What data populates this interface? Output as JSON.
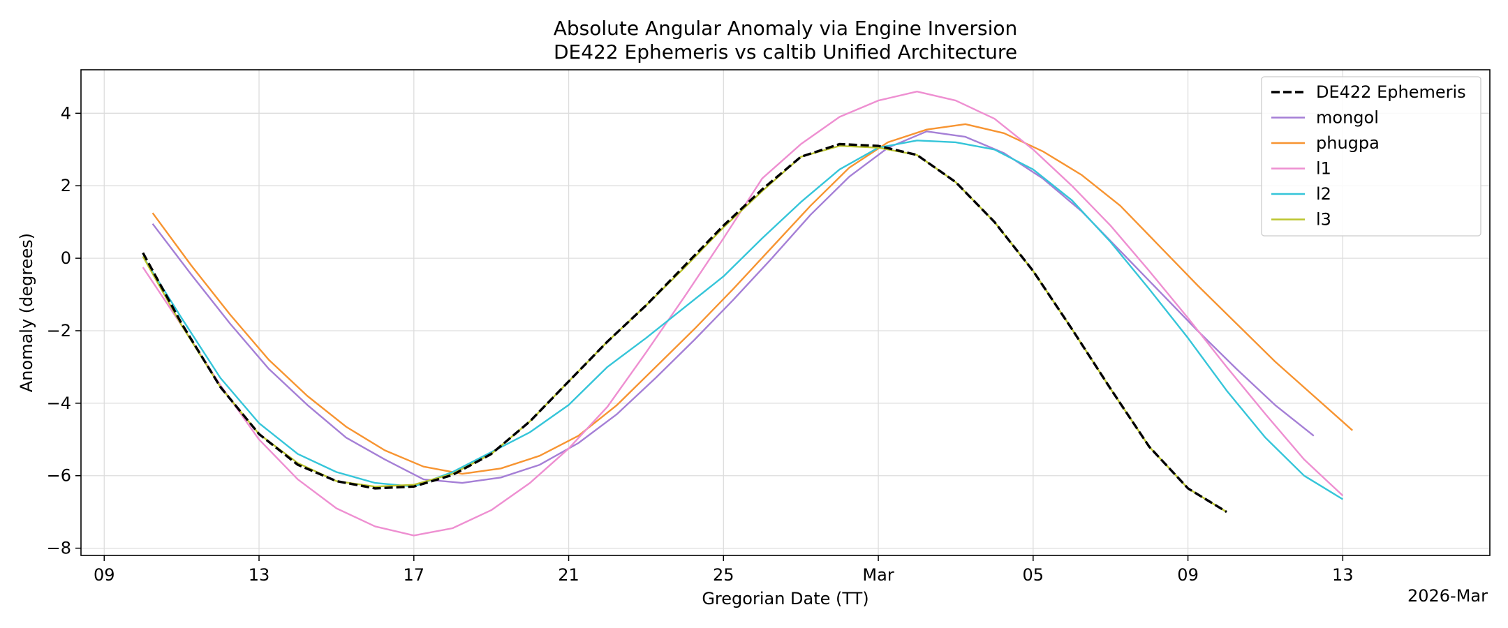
{
  "chart_data": {
    "type": "line",
    "title": "Absolute Angular Anomaly via Engine Inversion",
    "subtitle": "DE422 Ephemeris vs caltib Unified Architecture",
    "xlabel": "Gregorian Date (TT)",
    "ylabel": "Anomaly (degrees)",
    "x_offset_label": "2026-Mar",
    "x_unit": "days since Feb 09",
    "xlim": [
      -0.6,
      35.8
    ],
    "ylim": [
      -8.2,
      5.2
    ],
    "grid": true,
    "legend_position": "top-right",
    "x_ticks": [
      {
        "value": 0,
        "label": "09"
      },
      {
        "value": 4,
        "label": "13"
      },
      {
        "value": 8,
        "label": "17"
      },
      {
        "value": 12,
        "label": "21"
      },
      {
        "value": 16,
        "label": "25"
      },
      {
        "value": 20,
        "label": "Mar"
      },
      {
        "value": 24,
        "label": "05"
      },
      {
        "value": 28,
        "label": "09"
      },
      {
        "value": 32,
        "label": "13"
      }
    ],
    "y_ticks": [
      {
        "value": 4,
        "label": "4"
      },
      {
        "value": 2,
        "label": "2"
      },
      {
        "value": 0,
        "label": "0"
      },
      {
        "value": -2,
        "label": "−2"
      },
      {
        "value": -4,
        "label": "−4"
      },
      {
        "value": -6,
        "label": "−6"
      },
      {
        "value": -8,
        "label": "−8"
      }
    ],
    "series": [
      {
        "name": "DE422 Ephemeris",
        "color": "#000000",
        "dash": true,
        "x": [
          1,
          2,
          3,
          4,
          5,
          6,
          7,
          8,
          9,
          10,
          11,
          12,
          13,
          14,
          15,
          16,
          17,
          18,
          19,
          20,
          21,
          22,
          23,
          24,
          25,
          26,
          27,
          28,
          29,
          30,
          31,
          32,
          33,
          34
        ],
        "y": [
          0.15,
          -1.8,
          -3.55,
          -4.85,
          -5.7,
          -6.15,
          -6.35,
          -6.3,
          -5.98,
          -5.4,
          -4.5,
          -3.4,
          -2.3,
          -1.3,
          -0.2,
          0.9,
          1.9,
          2.8,
          3.15,
          3.1,
          2.85,
          2.1,
          1.0,
          -0.35,
          -1.95,
          -3.6,
          -5.2,
          -6.35,
          -7.0,
          null,
          null,
          null,
          null,
          null
        ]
      },
      {
        "name": "mongol",
        "color": "#a57fd6",
        "dash": false,
        "x": [
          1.25,
          2.25,
          3.25,
          4.25,
          5.25,
          6.25,
          7.25,
          8.25,
          9.25,
          10.25,
          11.25,
          12.25,
          13.25,
          14.25,
          15.25,
          16.25,
          17.25,
          18.25,
          19.25,
          20.25,
          21.25,
          22.25,
          23.25,
          24.25,
          25.25,
          26.25,
          27.25,
          28.25,
          29.25,
          30.25,
          31.25,
          32.25,
          33.25,
          34.25
        ],
        "y": [
          0.95,
          -0.45,
          -1.8,
          -3.05,
          -4.05,
          -4.95,
          -5.55,
          -6.1,
          -6.2,
          -6.05,
          -5.7,
          -5.1,
          -4.3,
          -3.3,
          -2.25,
          -1.15,
          0.0,
          1.2,
          2.25,
          3.05,
          3.5,
          3.35,
          2.9,
          2.2,
          1.3,
          0.2,
          -0.9,
          -2.0,
          -3.05,
          -4.05,
          -4.9,
          null,
          null,
          null
        ]
      },
      {
        "name": "phugpa",
        "color": "#f79431",
        "dash": false,
        "x": [
          1.25,
          2.25,
          3.25,
          4.25,
          5.25,
          6.25,
          7.25,
          8.25,
          9.25,
          10.25,
          11.25,
          12.25,
          13.25,
          14.25,
          15.25,
          16.25,
          17.25,
          18.25,
          19.25,
          20.25,
          21.25,
          22.25,
          23.25,
          24.25,
          25.25,
          26.25,
          27.25,
          28.25,
          29.25,
          30.25,
          31.25,
          32.25,
          33.25,
          34.25
        ],
        "y": [
          1.25,
          -0.2,
          -1.55,
          -2.8,
          -3.8,
          -4.65,
          -5.3,
          -5.75,
          -5.95,
          -5.8,
          -5.45,
          -4.9,
          -4.05,
          -3.0,
          -1.95,
          -0.85,
          0.3,
          1.45,
          2.5,
          3.2,
          3.55,
          3.7,
          3.45,
          2.95,
          2.3,
          1.45,
          0.35,
          -0.75,
          -1.8,
          -2.85,
          -3.8,
          -4.75,
          null,
          null
        ]
      },
      {
        "name": "l1",
        "color": "#ee8fd1",
        "dash": false,
        "x": [
          1,
          2,
          3,
          4,
          5,
          6,
          7,
          8,
          9,
          10,
          11,
          12,
          13,
          14,
          15,
          16,
          17,
          18,
          19,
          20,
          21,
          22,
          23,
          24,
          25,
          26,
          27,
          28,
          29,
          30,
          31,
          32,
          33,
          34
        ],
        "y": [
          -0.25,
          -1.85,
          -3.5,
          -5.0,
          -6.1,
          -6.9,
          -7.4,
          -7.65,
          -7.45,
          -6.95,
          -6.2,
          -5.25,
          -4.1,
          -2.6,
          -1.05,
          0.55,
          2.2,
          3.15,
          3.9,
          4.35,
          4.6,
          4.35,
          3.85,
          3.0,
          2.0,
          0.9,
          -0.35,
          -1.65,
          -3.0,
          -4.3,
          -5.55,
          -6.55,
          null,
          null
        ]
      },
      {
        "name": "l2",
        "color": "#35c5d9",
        "dash": false,
        "x": [
          1,
          2,
          3,
          4,
          5,
          6,
          7,
          8,
          9,
          10,
          11,
          12,
          13,
          14,
          15,
          16,
          17,
          18,
          19,
          20,
          21,
          22,
          23,
          24,
          25,
          26,
          27,
          28,
          29,
          30,
          31,
          32,
          33,
          34
        ],
        "y": [
          0.05,
          -1.65,
          -3.3,
          -4.55,
          -5.4,
          -5.9,
          -6.2,
          -6.3,
          -5.9,
          -5.35,
          -4.8,
          -4.05,
          -3.0,
          -2.2,
          -1.35,
          -0.5,
          0.55,
          1.55,
          2.45,
          3.05,
          3.25,
          3.2,
          3.0,
          2.45,
          1.6,
          0.45,
          -0.85,
          -2.2,
          -3.65,
          -4.95,
          -6.0,
          -6.65,
          null,
          null
        ]
      },
      {
        "name": "l3",
        "color": "#bcc52f",
        "dash": false,
        "x": [
          1,
          2,
          3,
          4,
          5,
          6,
          7,
          8,
          9,
          10,
          11,
          12,
          13,
          14,
          15,
          16,
          17,
          18,
          19,
          20,
          21,
          22,
          23,
          24,
          25,
          26,
          27,
          28,
          29,
          30,
          31,
          32,
          33,
          34
        ],
        "y": [
          0.05,
          -1.85,
          -3.55,
          -4.85,
          -5.65,
          -6.15,
          -6.3,
          -6.25,
          -5.95,
          -5.4,
          -4.5,
          -3.4,
          -2.3,
          -1.3,
          -0.25,
          0.85,
          1.85,
          2.8,
          3.1,
          3.05,
          2.85,
          2.1,
          1.0,
          -0.35,
          -1.95,
          -3.6,
          -5.2,
          -6.35,
          -7.0,
          null,
          null,
          null,
          null,
          null
        ]
      }
    ]
  }
}
